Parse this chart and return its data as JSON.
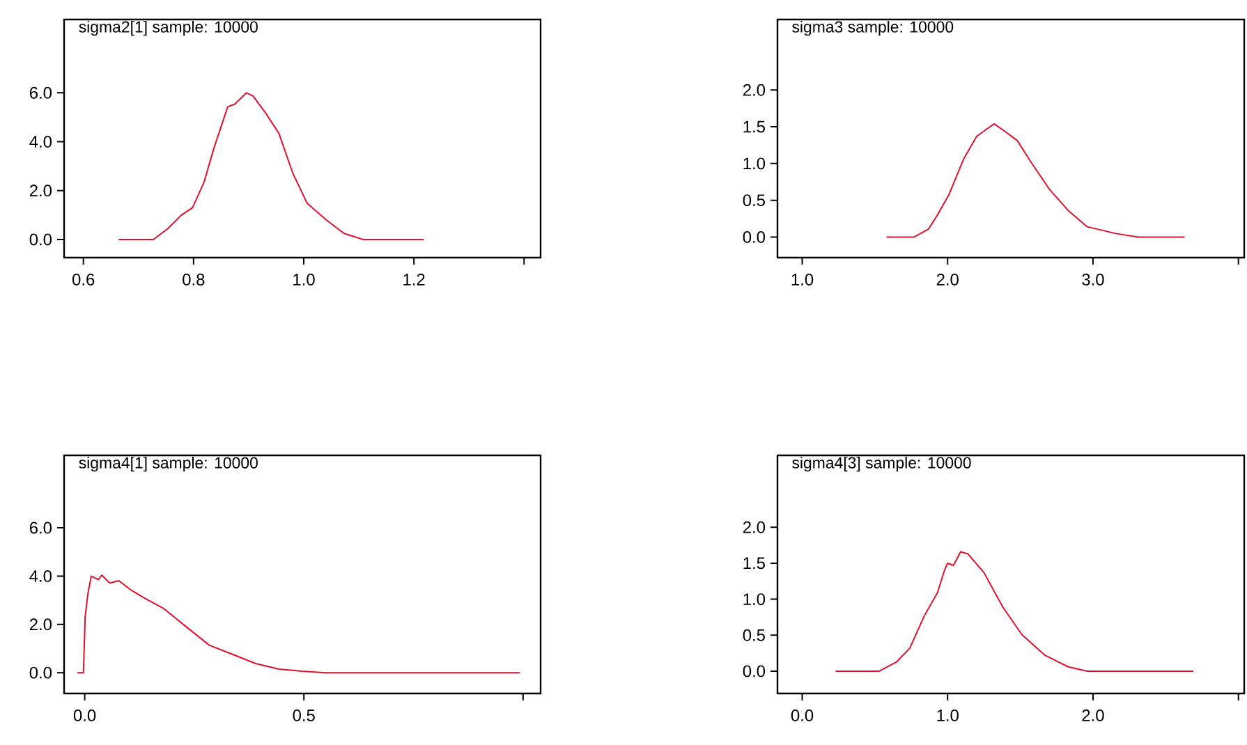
{
  "chart_data": [
    {
      "type": "line",
      "title": "sigma2[1] sample: 10000",
      "xlim": [
        0.565,
        1.43
      ],
      "ylim": [
        -0.74,
        9.0
      ],
      "xticks": [
        {
          "value": 0.6,
          "label": "0.6"
        },
        {
          "value": 0.8,
          "label": "0.8"
        },
        {
          "value": 1.0,
          "label": "1.0"
        },
        {
          "value": 1.2,
          "label": "1.2"
        },
        {
          "value": 1.4,
          "label": null
        }
      ],
      "yticks": [
        {
          "value": 0,
          "label": "0.0"
        },
        {
          "value": 2,
          "label": "2.0"
        },
        {
          "value": 4,
          "label": "4.0"
        },
        {
          "value": 6,
          "label": "6.0"
        }
      ],
      "series": [
        {
          "color": "#e0102a",
          "x": [
            0.664,
            0.727,
            0.753,
            0.778,
            0.798,
            0.819,
            0.836,
            0.862,
            0.875,
            0.896,
            0.908,
            0.93,
            0.955,
            0.98,
            1.006,
            1.04,
            1.073,
            1.108,
            1.218
          ],
          "values": [
            0,
            0,
            0.44,
            1.0,
            1.3,
            2.34,
            3.67,
            5.43,
            5.54,
            6.0,
            5.87,
            5.2,
            4.34,
            2.72,
            1.49,
            0.82,
            0.25,
            0,
            0
          ]
        }
      ]
    },
    {
      "type": "line",
      "title": "sigma3 sample: 10000",
      "xlim": [
        0.83,
        4.04
      ],
      "ylim": [
        -0.28,
        2.96
      ],
      "xticks": [
        {
          "value": 1,
          "label": "1.0"
        },
        {
          "value": 2,
          "label": "2.0"
        },
        {
          "value": 3,
          "label": "3.0"
        },
        {
          "value": 4,
          "label": null
        }
      ],
      "yticks": [
        {
          "value": 0,
          "label": "0.0"
        },
        {
          "value": 0.5,
          "label": "0.5"
        },
        {
          "value": 1,
          "label": "1.0"
        },
        {
          "value": 1.5,
          "label": "1.5"
        },
        {
          "value": 2,
          "label": "2.0"
        }
      ],
      "series": [
        {
          "color": "#e0102a",
          "x": [
            1.58,
            1.77,
            1.87,
            1.93,
            2.01,
            2.11,
            2.2,
            2.27,
            2.32,
            2.4,
            2.48,
            2.57,
            2.7,
            2.83,
            2.96,
            3.15,
            3.31,
            3.63
          ],
          "values": [
            0,
            0,
            0.11,
            0.3,
            0.58,
            1.06,
            1.37,
            1.47,
            1.54,
            1.43,
            1.31,
            1.03,
            0.65,
            0.36,
            0.14,
            0.05,
            0,
            0
          ]
        }
      ]
    },
    {
      "type": "line",
      "title": "sigma4[1] sample: 10000",
      "xlim": [
        -0.047,
        1.04
      ],
      "ylim": [
        -0.86,
        9.0
      ],
      "xticks": [
        {
          "value": 0,
          "label": "0.0"
        },
        {
          "value": 0.5,
          "label": "0.5"
        },
        {
          "value": 1,
          "label": null
        }
      ],
      "yticks": [
        {
          "value": 0,
          "label": "0.0"
        },
        {
          "value": 2,
          "label": "2.0"
        },
        {
          "value": 4,
          "label": "4.0"
        },
        {
          "value": 6,
          "label": "6.0"
        }
      ],
      "series": [
        {
          "color": "#e0102a",
          "x": [
            -0.017,
            -0.003,
            0.001,
            0.007,
            0.015,
            0.031,
            0.039,
            0.057,
            0.078,
            0.105,
            0.136,
            0.179,
            0.231,
            0.284,
            0.337,
            0.39,
            0.443,
            0.496,
            0.549,
            0.993
          ],
          "values": [
            0,
            0,
            2.29,
            3.24,
            4.0,
            3.85,
            4.04,
            3.71,
            3.81,
            3.43,
            3.09,
            2.67,
            1.91,
            1.14,
            0.76,
            0.38,
            0.15,
            0.06,
            0,
            0
          ]
        }
      ]
    },
    {
      "type": "line",
      "title": "sigma4[3] sample: 10000",
      "xlim": [
        -0.17,
        3.04
      ],
      "ylim": [
        -0.31,
        3.0
      ],
      "xticks": [
        {
          "value": 0,
          "label": "0.0"
        },
        {
          "value": 1,
          "label": "1.0"
        },
        {
          "value": 2,
          "label": "2.0"
        },
        {
          "value": 3,
          "label": null
        }
      ],
      "yticks": [
        {
          "value": 0,
          "label": "0.0"
        },
        {
          "value": 0.5,
          "label": "0.5"
        },
        {
          "value": 1,
          "label": "1.0"
        },
        {
          "value": 1.5,
          "label": "1.5"
        },
        {
          "value": 2,
          "label": "2.0"
        }
      ],
      "series": [
        {
          "color": "#e0102a",
          "x": [
            0.23,
            0.53,
            0.65,
            0.74,
            0.84,
            0.93,
            0.98,
            1.0,
            1.04,
            1.09,
            1.14,
            1.25,
            1.38,
            1.51,
            1.67,
            1.83,
            1.96,
            2.69
          ],
          "values": [
            0,
            0,
            0.13,
            0.32,
            0.77,
            1.09,
            1.41,
            1.5,
            1.47,
            1.66,
            1.63,
            1.37,
            0.89,
            0.51,
            0.22,
            0.06,
            0,
            0
          ]
        }
      ]
    }
  ]
}
